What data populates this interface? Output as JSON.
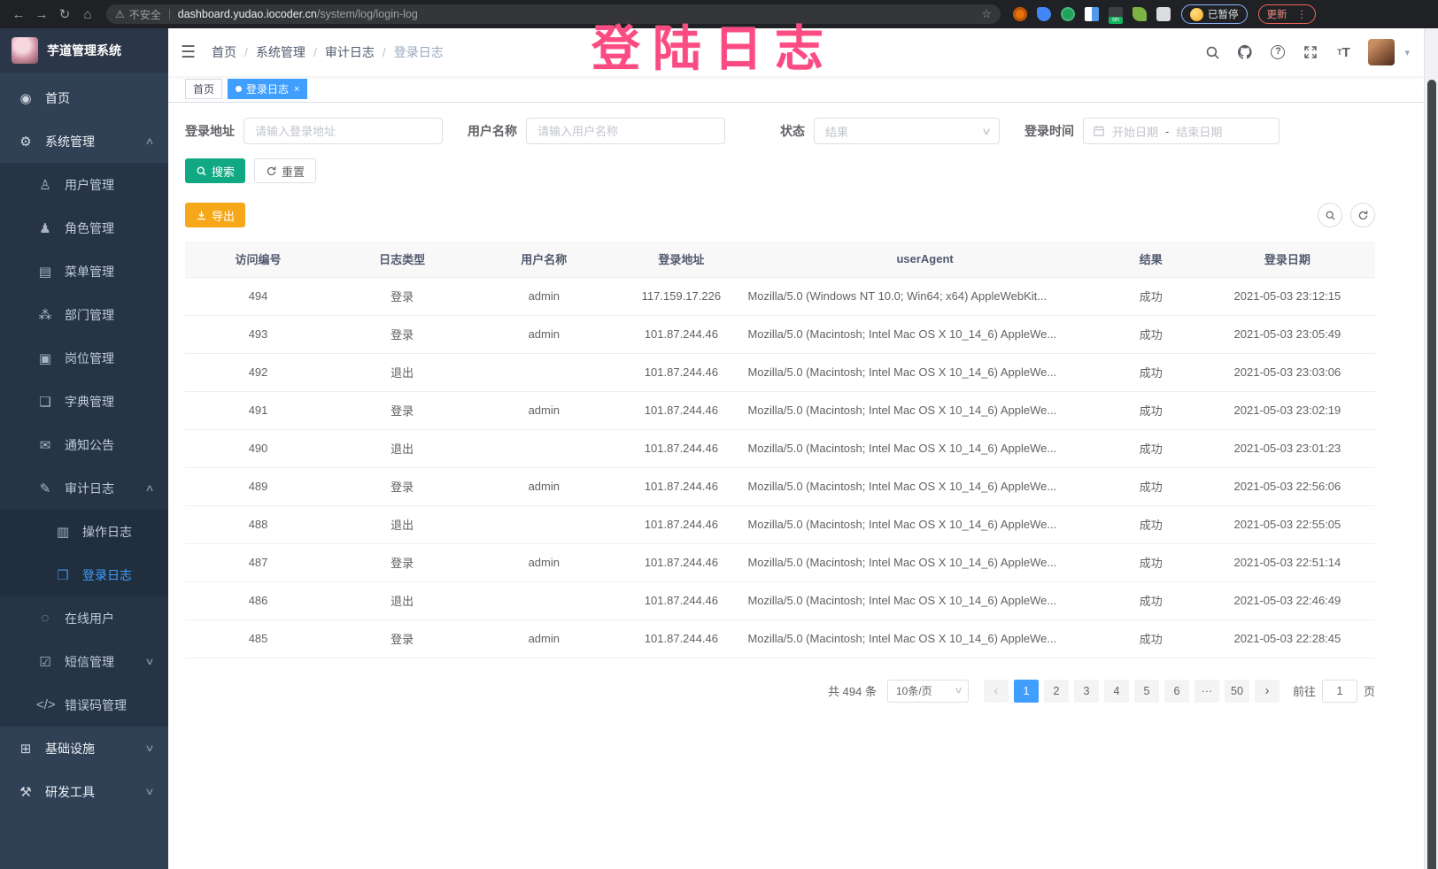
{
  "browser": {
    "security": "不安全",
    "url_host": "dashboard.yudao.iocoder.cn",
    "url_path": "/system/log/login-log",
    "profile_chip": "已暂停",
    "update_chip": "更新"
  },
  "overlay_title": "登陆日志",
  "sidebar": {
    "app_title": "芋道管理系统",
    "items": [
      {
        "label": "首页",
        "icon": "dashboard-icon",
        "glyph": "◉",
        "level": 1
      },
      {
        "label": "系统管理",
        "icon": "gear-icon",
        "glyph": "⚙",
        "level": 1,
        "caret": "up"
      },
      {
        "label": "用户管理",
        "icon": "user-icon",
        "glyph": "♙",
        "level": 2
      },
      {
        "label": "角色管理",
        "icon": "roles-icon",
        "glyph": "♟",
        "level": 2
      },
      {
        "label": "菜单管理",
        "icon": "menu-list-icon",
        "glyph": "▤",
        "level": 2
      },
      {
        "label": "部门管理",
        "icon": "org-tree-icon",
        "glyph": "⁂",
        "level": 2
      },
      {
        "label": "岗位管理",
        "icon": "post-badge-icon",
        "glyph": "▣",
        "level": 2
      },
      {
        "label": "字典管理",
        "icon": "dictionary-icon",
        "glyph": "❏",
        "level": 2
      },
      {
        "label": "通知公告",
        "icon": "announcement-icon",
        "glyph": "✉",
        "level": 2
      },
      {
        "label": "审计日志",
        "icon": "audit-log-icon",
        "glyph": "✎",
        "level": 2,
        "caret": "up"
      },
      {
        "label": "操作日志",
        "icon": "operation-log-icon",
        "glyph": "▥",
        "level": 3
      },
      {
        "label": "登录日志",
        "icon": "login-log-icon",
        "glyph": "❒",
        "level": 3,
        "active": true
      },
      {
        "label": "在线用户",
        "icon": "online-users-icon",
        "glyph": "◌",
        "level": 2
      },
      {
        "label": "短信管理",
        "icon": "sms-icon",
        "glyph": "☑",
        "level": 2,
        "caret": "down"
      },
      {
        "label": "错误码管理",
        "icon": "error-code-icon",
        "glyph": "</>",
        "level": 2
      },
      {
        "label": "基础设施",
        "icon": "infrastructure-icon",
        "glyph": "⊞",
        "level": 1,
        "caret": "down"
      },
      {
        "label": "研发工具",
        "icon": "dev-tools-icon",
        "glyph": "⚒",
        "level": 1,
        "caret": "down"
      }
    ]
  },
  "topbar": {
    "breadcrumb": [
      "首页",
      "系统管理",
      "审计日志",
      "登录日志"
    ]
  },
  "tags": [
    {
      "label": "首页",
      "active": false
    },
    {
      "label": "登录日志",
      "active": true
    }
  ],
  "filters": {
    "address_label": "登录地址",
    "address_placeholder": "请输入登录地址",
    "username_label": "用户名称",
    "username_placeholder": "请输入用户名称",
    "status_label": "状态",
    "status_placeholder": "结果",
    "time_label": "登录时间",
    "time_start_placeholder": "开始日期",
    "time_separator": "-",
    "time_end_placeholder": "结束日期",
    "search_label": "搜索",
    "reset_label": "重置"
  },
  "toolbar": {
    "export_label": "导出"
  },
  "table": {
    "columns": [
      "访问编号",
      "日志类型",
      "用户名称",
      "登录地址",
      "userAgent",
      "结果",
      "登录日期"
    ],
    "rows": [
      [
        "494",
        "登录",
        "admin",
        "117.159.17.226",
        "Mozilla/5.0 (Windows NT 10.0; Win64; x64) AppleWebKit...",
        "成功",
        "2021-05-03 23:12:15"
      ],
      [
        "493",
        "登录",
        "admin",
        "101.87.244.46",
        "Mozilla/5.0 (Macintosh; Intel Mac OS X 10_14_6) AppleWe...",
        "成功",
        "2021-05-03 23:05:49"
      ],
      [
        "492",
        "退出",
        "",
        "101.87.244.46",
        "Mozilla/5.0 (Macintosh; Intel Mac OS X 10_14_6) AppleWe...",
        "成功",
        "2021-05-03 23:03:06"
      ],
      [
        "491",
        "登录",
        "admin",
        "101.87.244.46",
        "Mozilla/5.0 (Macintosh; Intel Mac OS X 10_14_6) AppleWe...",
        "成功",
        "2021-05-03 23:02:19"
      ],
      [
        "490",
        "退出",
        "",
        "101.87.244.46",
        "Mozilla/5.0 (Macintosh; Intel Mac OS X 10_14_6) AppleWe...",
        "成功",
        "2021-05-03 23:01:23"
      ],
      [
        "489",
        "登录",
        "admin",
        "101.87.244.46",
        "Mozilla/5.0 (Macintosh; Intel Mac OS X 10_14_6) AppleWe...",
        "成功",
        "2021-05-03 22:56:06"
      ],
      [
        "488",
        "退出",
        "",
        "101.87.244.46",
        "Mozilla/5.0 (Macintosh; Intel Mac OS X 10_14_6) AppleWe...",
        "成功",
        "2021-05-03 22:55:05"
      ],
      [
        "487",
        "登录",
        "admin",
        "101.87.244.46",
        "Mozilla/5.0 (Macintosh; Intel Mac OS X 10_14_6) AppleWe...",
        "成功",
        "2021-05-03 22:51:14"
      ],
      [
        "486",
        "退出",
        "",
        "101.87.244.46",
        "Mozilla/5.0 (Macintosh; Intel Mac OS X 10_14_6) AppleWe...",
        "成功",
        "2021-05-03 22:46:49"
      ],
      [
        "485",
        "登录",
        "admin",
        "101.87.244.46",
        "Mozilla/5.0 (Macintosh; Intel Mac OS X 10_14_6) AppleWe...",
        "成功",
        "2021-05-03 22:28:45"
      ]
    ]
  },
  "pagination": {
    "total_label": "共 494 条",
    "page_size": "10条/页",
    "pages": [
      "1",
      "2",
      "3",
      "4",
      "5",
      "6",
      "···",
      "50"
    ],
    "active_page": "1",
    "jump_prefix": "前往",
    "jump_value": "1",
    "jump_suffix": "页"
  },
  "colors": {
    "accent": "#409eff",
    "search_button": "#11a983",
    "export_button": "#f7a71a",
    "overlay_text": "#fb4b83",
    "sidebar_bg": "#304156"
  }
}
